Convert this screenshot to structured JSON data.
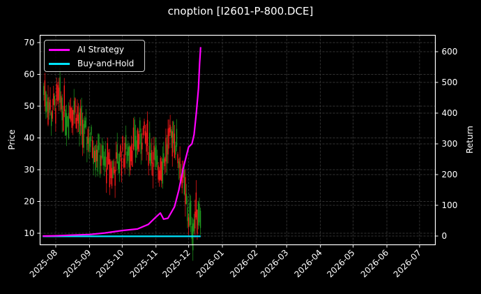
{
  "chart_data": {
    "type": "line",
    "title": "cnoption [I2601-P-800.DCE]",
    "xlabel": "",
    "ylabel": "Price",
    "y2label": "Return",
    "ylim": [
      6,
      72
    ],
    "y2lim": [
      -25,
      650
    ],
    "grid": true,
    "legend_position": "upper left",
    "x_ticks": [
      "2025-08",
      "2025-09",
      "2025-10",
      "2025-11",
      "2025-12",
      "2026-01",
      "2026-02",
      "2026-03",
      "2026-04",
      "2026-05",
      "2026-06",
      "2026-07"
    ],
    "y_ticks": [
      10,
      20,
      30,
      40,
      50,
      60,
      70
    ],
    "y2_ticks": [
      0,
      100,
      200,
      300,
      400,
      500,
      600
    ],
    "legend": [
      "AI Strategy",
      "Buy-and-Hold"
    ],
    "series": [
      {
        "name": "AI Strategy",
        "axis": "right",
        "color": "#ff00ff",
        "x": [
          "2025-07-20",
          "2025-08-01",
          "2025-08-15",
          "2025-09-01",
          "2025-09-15",
          "2025-10-01",
          "2025-10-15",
          "2025-10-25",
          "2025-11-01",
          "2025-11-05",
          "2025-11-08",
          "2025-11-12",
          "2025-11-18",
          "2025-11-22",
          "2025-11-26",
          "2025-12-01",
          "2025-12-04",
          "2025-12-06",
          "2025-12-08",
          "2025-12-10",
          "2025-12-11",
          "2025-12-12"
        ],
        "values": [
          0,
          1,
          3,
          5,
          10,
          18,
          23,
          38,
          62,
          75,
          55,
          58,
          95,
          150,
          220,
          290,
          300,
          330,
          400,
          480,
          560,
          615
        ]
      },
      {
        "name": "Buy-and-Hold",
        "axis": "right",
        "color": "#00e5ff",
        "x": [
          "2025-07-20",
          "2025-12-12"
        ],
        "values": [
          -1,
          -1
        ]
      },
      {
        "name": "Price (OHLC candles)",
        "axis": "left",
        "up_color": "#1f9a1f",
        "down_color": "#ff1a1a",
        "approx_close_path": [
          {
            "x": "2025-07-21",
            "v": 55
          },
          {
            "x": "2025-07-28",
            "v": 48
          },
          {
            "x": "2025-08-04",
            "v": 52
          },
          {
            "x": "2025-08-11",
            "v": 47
          },
          {
            "x": "2025-08-18",
            "v": 50
          },
          {
            "x": "2025-08-25",
            "v": 42
          },
          {
            "x": "2025-09-01",
            "v": 40
          },
          {
            "x": "2025-09-08",
            "v": 36
          },
          {
            "x": "2025-09-15",
            "v": 32
          },
          {
            "x": "2025-09-22",
            "v": 29
          },
          {
            "x": "2025-09-29",
            "v": 34
          },
          {
            "x": "2025-10-06",
            "v": 36
          },
          {
            "x": "2025-10-13",
            "v": 38
          },
          {
            "x": "2025-10-20",
            "v": 41
          },
          {
            "x": "2025-10-27",
            "v": 36
          },
          {
            "x": "2025-11-03",
            "v": 30
          },
          {
            "x": "2025-11-10",
            "v": 35
          },
          {
            "x": "2025-11-17",
            "v": 42
          },
          {
            "x": "2025-11-24",
            "v": 30
          },
          {
            "x": "2025-12-01",
            "v": 15
          },
          {
            "x": "2025-12-05",
            "v": 12
          },
          {
            "x": "2025-12-10",
            "v": 18
          }
        ]
      }
    ]
  },
  "title": "cnoption [I2601-P-800.DCE]",
  "axes": {
    "ylabel": "Price",
    "y2label": "Return"
  },
  "legend": {
    "items": [
      {
        "label": "AI Strategy",
        "color": "#ff00ff"
      },
      {
        "label": "Buy-and-Hold",
        "color": "#00e5ff"
      }
    ]
  }
}
